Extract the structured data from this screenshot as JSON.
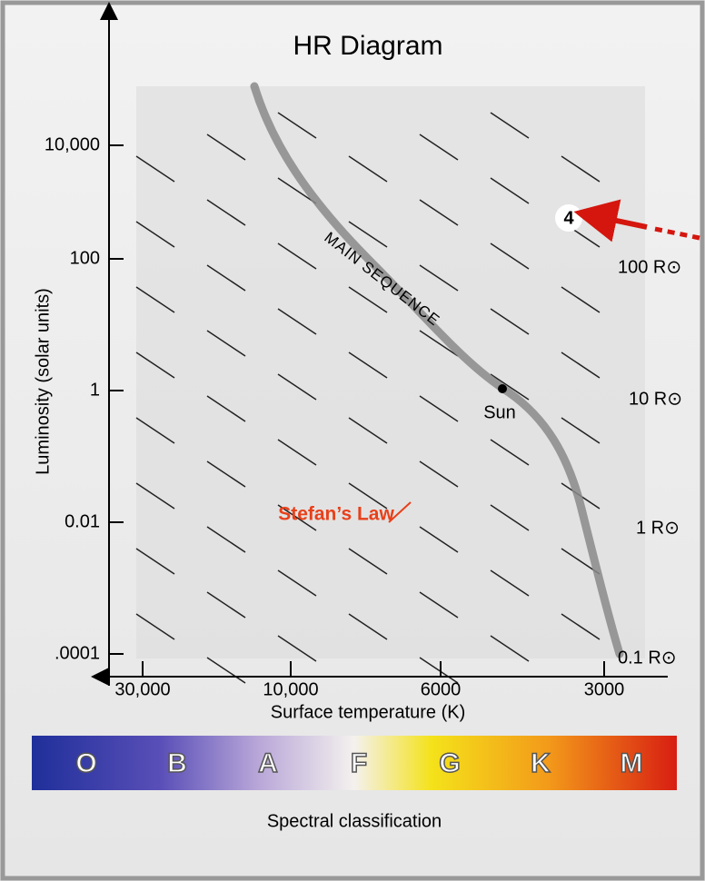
{
  "title": "HR Diagram",
  "y_axis": {
    "label": "Luminosity (solar units)",
    "ticks": [
      "10,000",
      "100",
      "1",
      "0.01",
      ".0001"
    ]
  },
  "x_axis": {
    "label": "Surface temperature (K)",
    "ticks": [
      "30,000",
      "10,000",
      "6000",
      "3000"
    ]
  },
  "radius_labels": [
    "100 R⊙",
    "10 R⊙",
    "1 R⊙",
    "0.1 R⊙"
  ],
  "annotations": {
    "main_sequence": "MAIN SEQUENCE",
    "sun": "Sun",
    "stefans_law": "Stefan’s Law",
    "stage": "4"
  },
  "spectral": {
    "classes": [
      "O",
      "B",
      "A",
      "F",
      "G",
      "K",
      "M"
    ],
    "label": "Spectral classification"
  }
}
